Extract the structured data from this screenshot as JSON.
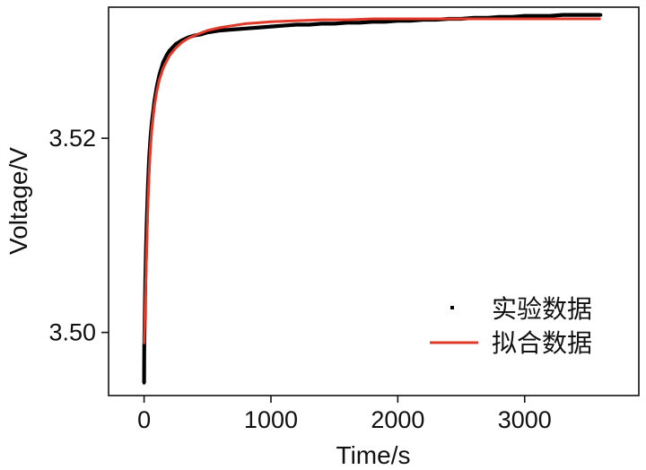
{
  "chart_data": {
    "type": "scatter",
    "xlabel": "Time/s",
    "ylabel": "Voltage/V",
    "xlim": [
      -280,
      3900
    ],
    "ylim": [
      3.4935,
      3.5335
    ],
    "xticks": [
      0,
      1000,
      2000,
      3000
    ],
    "yticks": [
      3.5,
      3.52
    ],
    "ytick_labels": [
      "3.50",
      "3.52"
    ],
    "xtick_labels": [
      "0",
      "1000",
      "2000",
      "3000"
    ],
    "legend": {
      "position": "lower-right"
    },
    "series": [
      {
        "name": "实验数据",
        "kind": "scatter",
        "color": "#000000",
        "x": [
          0,
          1,
          2,
          4,
          6,
          8,
          10,
          15,
          20,
          30,
          40,
          50,
          60,
          80,
          100,
          120,
          150,
          180,
          200,
          250,
          300,
          350,
          400,
          450,
          500,
          550,
          600,
          700,
          800,
          900,
          1000,
          1100,
          1200,
          1300,
          1400,
          1500,
          1600,
          1700,
          1800,
          1900,
          2000,
          2100,
          2200,
          2300,
          2400,
          2500,
          2600,
          2700,
          2800,
          2900,
          3000,
          3100,
          3200,
          3300,
          3400,
          3500,
          3600
        ],
        "y": [
          3.4948,
          3.4978,
          3.4992,
          3.5008,
          3.5024,
          3.504,
          3.5055,
          3.5085,
          3.511,
          3.515,
          3.518,
          3.52,
          3.5215,
          3.5237,
          3.5253,
          3.5265,
          3.5278,
          3.5286,
          3.529,
          3.5297,
          3.5301,
          3.5304,
          3.5306,
          3.5307,
          3.5309,
          3.531,
          3.5311,
          3.5312,
          3.5313,
          3.5314,
          3.5315,
          3.5316,
          3.5317,
          3.5317,
          3.5318,
          3.5318,
          3.5319,
          3.5319,
          3.532,
          3.532,
          3.5321,
          3.5321,
          3.5322,
          3.5322,
          3.5323,
          3.5323,
          3.5324,
          3.5324,
          3.5325,
          3.5325,
          3.5326,
          3.5326,
          3.5326,
          3.5327,
          3.5327,
          3.5327,
          3.5327
        ]
      },
      {
        "name": "拟合数据",
        "kind": "line",
        "color": "#e03a2a",
        "x": [
          0,
          2,
          5,
          10,
          15,
          20,
          30,
          40,
          50,
          60,
          80,
          100,
          120,
          150,
          180,
          200,
          250,
          300,
          350,
          400,
          500,
          600,
          700,
          800,
          900,
          1000,
          1200,
          1400,
          1600,
          1800,
          2000,
          2200,
          2500,
          3000,
          3600
        ],
        "y": [
          3.4988,
          3.4998,
          3.5012,
          3.5035,
          3.506,
          3.5085,
          3.513,
          3.5165,
          3.519,
          3.5208,
          3.5232,
          3.5248,
          3.526,
          3.5272,
          3.528,
          3.5285,
          3.5293,
          3.5299,
          3.5303,
          3.5306,
          3.5311,
          3.5314,
          3.5316,
          3.5318,
          3.5319,
          3.532,
          3.5321,
          3.5322,
          3.5322,
          3.5323,
          3.5323,
          3.5323,
          3.5323,
          3.5323,
          3.5323
        ]
      }
    ]
  }
}
